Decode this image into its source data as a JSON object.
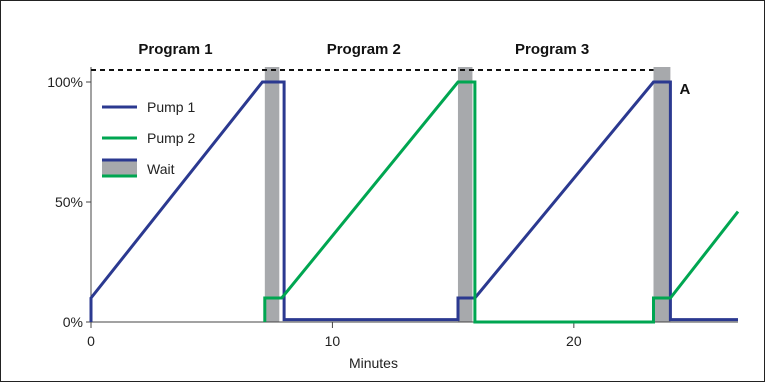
{
  "chart_data": {
    "type": "line",
    "title": "",
    "xlabel": "Minutes",
    "ylabel": "",
    "xlim": [
      0,
      26.8
    ],
    "ylim": [
      0,
      100
    ],
    "x_ticks": [
      0,
      10,
      20
    ],
    "y_ticks": [
      {
        "value": 0,
        "label": "0%"
      },
      {
        "value": 50,
        "label": "50%"
      },
      {
        "value": 100,
        "label": "100%"
      }
    ],
    "grid": false,
    "legend_position": "top-left",
    "program_labels": [
      {
        "label": "Program 1",
        "x": 3.5
      },
      {
        "label": "Program 2",
        "x": 11.3
      },
      {
        "label": "Program 3",
        "x": 19.1
      }
    ],
    "program_line": {
      "y": 105,
      "x_start": 0,
      "x_end": 23.3
    },
    "annotations": [
      {
        "text": "A",
        "x": 24.6,
        "y": 97
      }
    ],
    "wait_bands": [
      {
        "x_start": 7.2,
        "x_end": 7.8
      },
      {
        "x_start": 15.2,
        "x_end": 15.8
      },
      {
        "x_start": 23.3,
        "x_end": 24.0
      }
    ],
    "series": [
      {
        "name": "Pump 1",
        "color": "#2b3990",
        "x": [
          0,
          0,
          7.1,
          8.0,
          8.0,
          15.2,
          15.2,
          15.9,
          23.3,
          24.0,
          24.0,
          26.8
        ],
        "y": [
          0,
          10,
          100,
          100,
          1,
          1,
          10,
          10,
          100,
          100,
          1,
          1
        ]
      },
      {
        "name": "Pump 2",
        "color": "#00a651",
        "x": [
          7.2,
          7.2,
          7.9,
          15.2,
          15.9,
          15.9,
          23.3,
          23.3,
          24.0,
          26.8
        ],
        "y": [
          0,
          10,
          10,
          100,
          100,
          0,
          0,
          10,
          10,
          46
        ]
      }
    ],
    "legend": {
      "entries": [
        "Pump 1",
        "Pump 2",
        "Wait"
      ],
      "wait_fill_color": "#a7a9ac"
    }
  }
}
